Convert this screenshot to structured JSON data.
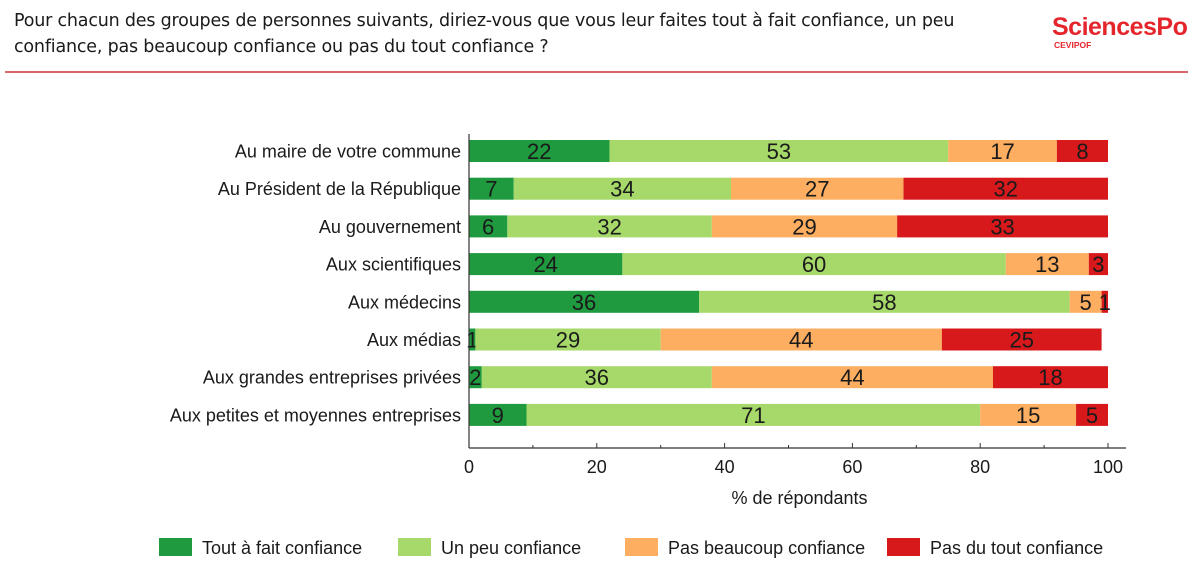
{
  "header": {
    "question": "Pour chacun des groupes de personnes suivants, diriez-vous que vous leur faites tout à fait confiance, un peu confiance, pas beaucoup confiance ou pas du tout confiance ?",
    "logo_main": "SciencesPo",
    "logo_sub": "CEVIPOF",
    "brand_color": "#e4262c"
  },
  "chart_data": {
    "type": "bar",
    "orientation": "horizontal",
    "stacked": true,
    "title": "",
    "xlabel": "% de répondants",
    "ylabel": "",
    "xlim": [
      0,
      100
    ],
    "xticks": [
      0,
      20,
      40,
      60,
      80,
      100
    ],
    "grid": false,
    "legend_position": "bottom",
    "categories": [
      "Au maire de votre commune",
      "Au Président de la République",
      "Au gouvernement",
      "Aux scientifiques",
      "Aux médecins",
      "Aux médias",
      "Aux grandes entreprises privées",
      "Aux petites et moyennes entreprises"
    ],
    "series": [
      {
        "name": "Tout à fait confiance",
        "color": "#1f9a3f",
        "values": [
          22,
          7,
          6,
          24,
          36,
          1,
          2,
          9
        ]
      },
      {
        "name": "Un peu confiance",
        "color": "#a6d96a",
        "values": [
          53,
          34,
          32,
          60,
          58,
          29,
          36,
          71
        ]
      },
      {
        "name": "Pas beaucoup confiance",
        "color": "#fdae61",
        "values": [
          17,
          27,
          29,
          13,
          5,
          44,
          44,
          15
        ]
      },
      {
        "name": "Pas du tout confiance",
        "color": "#d7191c",
        "values": [
          8,
          32,
          33,
          3,
          1,
          25,
          18,
          5
        ]
      }
    ]
  }
}
